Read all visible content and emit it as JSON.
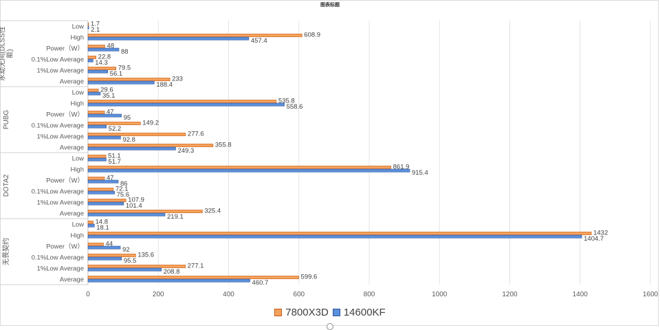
{
  "chart_data": {
    "type": "bar",
    "orientation": "horizontal",
    "title": "图表标题",
    "xlim": [
      0,
      1600
    ],
    "x_ticks": [
      "0",
      "200",
      "400",
      "600",
      "800",
      "1000",
      "1200",
      "1400",
      "1600"
    ],
    "grid": true,
    "legend_position": "bottom",
    "metrics": [
      "Low",
      "High",
      "Power（W）",
      "0.1%Low Average",
      "1%Low Average",
      "Average"
    ],
    "series": [
      {
        "name": "7800X3D",
        "color": "#f4a15c"
      },
      {
        "name": "14600KF",
        "color": "#5b8fdc"
      }
    ],
    "groups": [
      {
        "name": "永劫无间(DLSS性能)",
        "label_lines": [
          "永劫无间(DLSS性",
          "能)"
        ],
        "values": {
          "7800X3D": [
            1.7,
            608.9,
            48,
            22.8,
            79.5,
            233
          ],
          "14600KF": [
            2.1,
            457.4,
            88,
            14.3,
            56.1,
            188.4
          ]
        }
      },
      {
        "name": "PUBG",
        "label_lines": [
          "PUBG"
        ],
        "values": {
          "7800X3D": [
            29.6,
            535.8,
            47,
            149.2,
            277.6,
            355.8
          ],
          "14600KF": [
            35.1,
            558.6,
            95,
            52.2,
            92.8,
            249.3
          ]
        }
      },
      {
        "name": "DOTA2",
        "label_lines": [
          "DOTA2"
        ],
        "values": {
          "7800X3D": [
            51.1,
            861.9,
            47,
            72.1,
            107.9,
            325.4
          ],
          "14600KF": [
            51.7,
            915.4,
            86,
            75.6,
            101.4,
            219.1
          ]
        }
      },
      {
        "name": "无畏契约",
        "label_lines": [
          "无畏契约"
        ],
        "values": {
          "7800X3D": [
            14.8,
            1432,
            44,
            135.6,
            277.1,
            599.6
          ],
          "14600KF": [
            18.1,
            1404.7,
            92,
            95.5,
            208.8,
            460.7
          ]
        }
      }
    ]
  }
}
